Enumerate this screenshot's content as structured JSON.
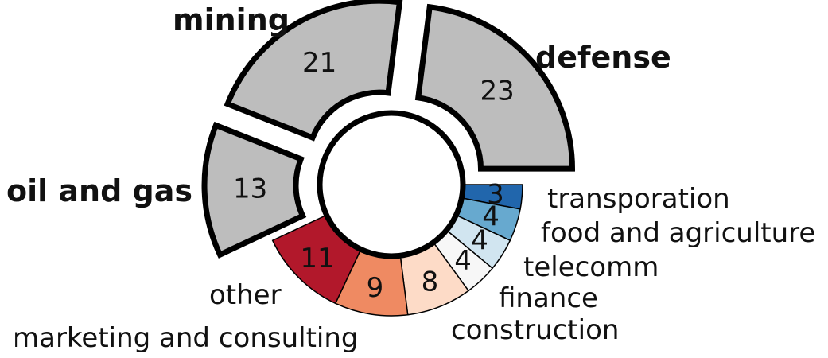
{
  "chart_data": {
    "type": "pie",
    "style": "donut",
    "categories": [
      "transporation",
      "food and agriculture",
      "telecomm",
      "finance",
      "construction",
      "marketing and consulting",
      "other",
      "oil and gas",
      "mining",
      "defense"
    ],
    "values": [
      3,
      4,
      4,
      4,
      8,
      9,
      11,
      13,
      21,
      23
    ],
    "colors": [
      "#2166ac",
      "#67a9cf",
      "#d1e5f0",
      "#f7f7f7",
      "#fddbc7",
      "#ef8a62",
      "#b2182b",
      "#bdbdbd",
      "#bdbdbd",
      "#bdbdbd"
    ],
    "highlighted": [
      "oil and gas",
      "mining",
      "defense"
    ],
    "legend": "none"
  }
}
